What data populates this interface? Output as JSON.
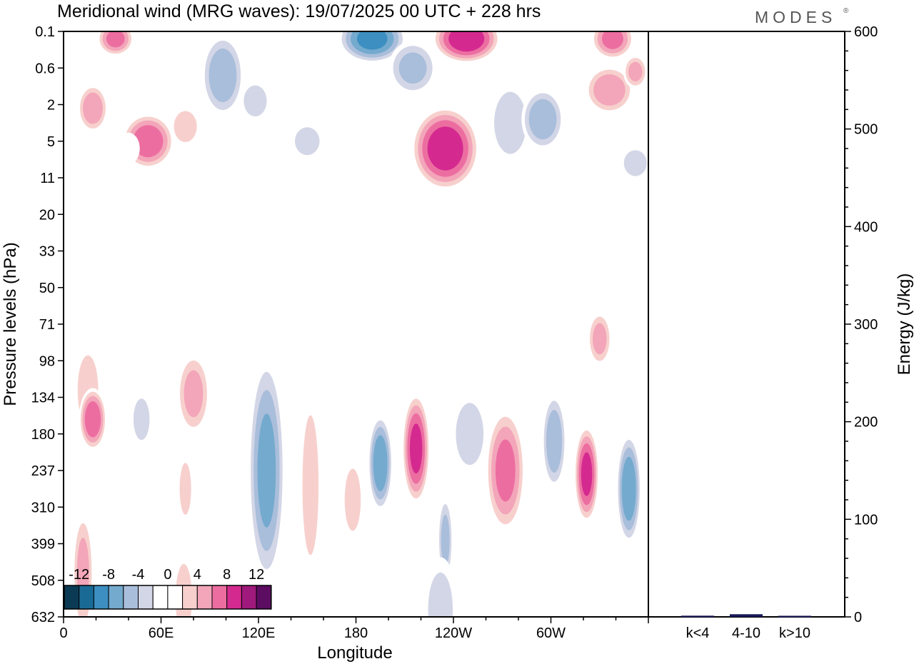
{
  "chart_data": {
    "type": "heatmap",
    "title": "Meridional wind (MRG waves):  19/07/2025  00 UTC  + 228 hrs",
    "logo": "MODES",
    "logo_mark": "®",
    "xlabel": "Longitude",
    "ylabel": "Pressure levels (hPa)",
    "x_ticks": [
      "0",
      "60E",
      "120E",
      "180",
      "120W",
      "60W"
    ],
    "y_levels": [
      "0.1",
      "0.6",
      "2",
      "5",
      "11",
      "20",
      "33",
      "50",
      "71",
      "98",
      "134",
      "180",
      "237",
      "310",
      "399",
      "508",
      "632"
    ],
    "colorbar": {
      "labels": [
        "-12",
        "-8",
        "-4",
        "0",
        "4",
        "8",
        "12"
      ],
      "colors": [
        "#0b3a55",
        "#1a6a96",
        "#3c8fc0",
        "#74aace",
        "#a9bedb",
        "#d3d6e6",
        "#ffffff",
        "#ffffff",
        "#f7d0cd",
        "#f3a5b9",
        "#ec6ea1",
        "#d42a8f",
        "#a0197c",
        "#5c0d62"
      ]
    },
    "energy": {
      "ylabel": "Energy (J/kg)",
      "ylim": [
        0,
        600
      ],
      "ticks": [
        "0",
        "100",
        "200",
        "300",
        "400",
        "500",
        "600"
      ],
      "categories": [
        "k<4",
        "4-10",
        "k>10"
      ],
      "values": [
        0.5,
        2.0,
        0.4
      ],
      "bar_color": "#1a1a5a"
    },
    "blobs": [
      {
        "lon": 18,
        "lev": 2.1,
        "w": 10,
        "h": 0.7,
        "v": 7
      },
      {
        "lon": 32,
        "lev": 0.2,
        "w": 12,
        "h": 0.5,
        "v": 8
      },
      {
        "lon": 52,
        "lev": 3.0,
        "w": 17,
        "h": 0.8,
        "v": 9
      },
      {
        "lon": 75,
        "lev": 2.6,
        "w": 10,
        "h": 0.6,
        "v": 5
      },
      {
        "lon": 62,
        "lev": 0.4,
        "w": 9,
        "h": 0.3,
        "v": -3
      },
      {
        "lon": 40,
        "lev": 3.2,
        "w": 8,
        "h": 0.5,
        "v": -3
      },
      {
        "lon": 98,
        "lev": 1.2,
        "w": 14,
        "h": 1.2,
        "v": -7
      },
      {
        "lon": 118,
        "lev": 1.9,
        "w": 10,
        "h": 0.6,
        "v": -5
      },
      {
        "lon": 150,
        "lev": 3.0,
        "w": 12,
        "h": 0.6,
        "v": -4
      },
      {
        "lon": 190,
        "lev": 0.2,
        "w": 22,
        "h": 0.7,
        "v": -10
      },
      {
        "lon": 215,
        "lev": 1.0,
        "w": 16,
        "h": 0.8,
        "v": -6
      },
      {
        "lon": 172,
        "lev": 1.0,
        "w": 10,
        "h": 0.4,
        "v": 3
      },
      {
        "lon": 248,
        "lev": 0.2,
        "w": 22,
        "h": 0.7,
        "v": 11
      },
      {
        "lon": 235,
        "lev": 3.2,
        "w": 22,
        "h": 1.2,
        "v": 11
      },
      {
        "lon": 275,
        "lev": 2.5,
        "w": 14,
        "h": 1.2,
        "v": -5
      },
      {
        "lon": 295,
        "lev": 2.4,
        "w": 14,
        "h": 0.9,
        "v": -7
      },
      {
        "lon": 338,
        "lev": 0.2,
        "w": 14,
        "h": 0.6,
        "v": 8
      },
      {
        "lon": 336,
        "lev": 1.6,
        "w": 16,
        "h": 0.7,
        "v": 7
      },
      {
        "lon": 352,
        "lev": 1.1,
        "w": 8,
        "h": 0.5,
        "v": 6
      },
      {
        "lon": 352,
        "lev": 3.6,
        "w": 10,
        "h": 0.5,
        "v": -5
      },
      {
        "lon": 15,
        "lev": 0.5,
        "w": 8,
        "h": 0.3,
        "v": 3
      },
      {
        "lon": 105,
        "lev": 4.5,
        "w": 6,
        "h": 0.3,
        "v": -3
      },
      {
        "lon": 208,
        "lev": 4.3,
        "w": 10,
        "h": 0.3,
        "v": 3
      },
      {
        "lon": 158,
        "lev": 4.5,
        "w": 8,
        "h": 0.3,
        "v": -3
      },
      {
        "lon": 310,
        "lev": 5.0,
        "w": 12,
        "h": 0.5,
        "v": -3
      },
      {
        "lon": 110,
        "lev": 5.6,
        "w": 6,
        "h": 0.3,
        "v": 3
      },
      {
        "lon": 345,
        "lev": 5.9,
        "w": 8,
        "h": 0.6,
        "v": -3
      },
      {
        "lon": 170,
        "lev": 6.5,
        "w": 12,
        "h": 0.5,
        "v": -3
      },
      {
        "lon": 15,
        "lev": 9.8,
        "w": 10,
        "h": 1.5,
        "v": 4
      },
      {
        "lon": 18,
        "lev": 10.6,
        "w": 9,
        "h": 0.9,
        "v": 9
      },
      {
        "lon": 48,
        "lev": 10.6,
        "w": 7,
        "h": 0.8,
        "v": -5
      },
      {
        "lon": 80,
        "lev": 9.9,
        "w": 11,
        "h": 1.2,
        "v": 6
      },
      {
        "lon": 75,
        "lev": 12.5,
        "w": 5,
        "h": 1.0,
        "v": 5
      },
      {
        "lon": 125,
        "lev": 12.0,
        "w": 12,
        "h": 3.3,
        "v": -8
      },
      {
        "lon": 152,
        "lev": 12.4,
        "w": 7,
        "h": 2.7,
        "v": 5
      },
      {
        "lon": 178,
        "lev": 12.8,
        "w": 7,
        "h": 1.2,
        "v": 5
      },
      {
        "lon": 195,
        "lev": 11.8,
        "w": 8,
        "h": 1.4,
        "v": -9
      },
      {
        "lon": 217,
        "lev": 11.4,
        "w": 9,
        "h": 1.6,
        "v": 10
      },
      {
        "lon": 235,
        "lev": 13.9,
        "w": 5,
        "h": 1.3,
        "v": -6
      },
      {
        "lon": 250,
        "lev": 11.0,
        "w": 12,
        "h": 1.2,
        "v": -5
      },
      {
        "lon": 272,
        "lev": 12.0,
        "w": 13,
        "h": 1.8,
        "v": 8
      },
      {
        "lon": 302,
        "lev": 11.2,
        "w": 8,
        "h": 1.4,
        "v": -7
      },
      {
        "lon": 322,
        "lev": 12.1,
        "w": 8,
        "h": 1.4,
        "v": 10
      },
      {
        "lon": 348,
        "lev": 12.5,
        "w": 8,
        "h": 1.6,
        "v": -9
      },
      {
        "lon": 330,
        "lev": 8.4,
        "w": 8,
        "h": 0.8,
        "v": 6
      },
      {
        "lon": 12,
        "lev": 14.8,
        "w": 7,
        "h": 1.8,
        "v": 6
      },
      {
        "lon": 50,
        "lev": 14.8,
        "w": 15,
        "h": 3.5,
        "v": -3
      },
      {
        "lon": 74,
        "lev": 15.5,
        "w": 8,
        "h": 1.5,
        "v": 4
      },
      {
        "lon": 195,
        "lev": 15.6,
        "w": 10,
        "h": 1.2,
        "v": 3
      },
      {
        "lon": 232,
        "lev": 15.8,
        "w": 12,
        "h": 1.6,
        "v": -4
      },
      {
        "lon": 265,
        "lev": 15.9,
        "w": 10,
        "h": 1.8,
        "v": 3
      },
      {
        "lon": 325,
        "lev": 14.8,
        "w": 8,
        "h": 1.5,
        "v": 3
      }
    ]
  }
}
